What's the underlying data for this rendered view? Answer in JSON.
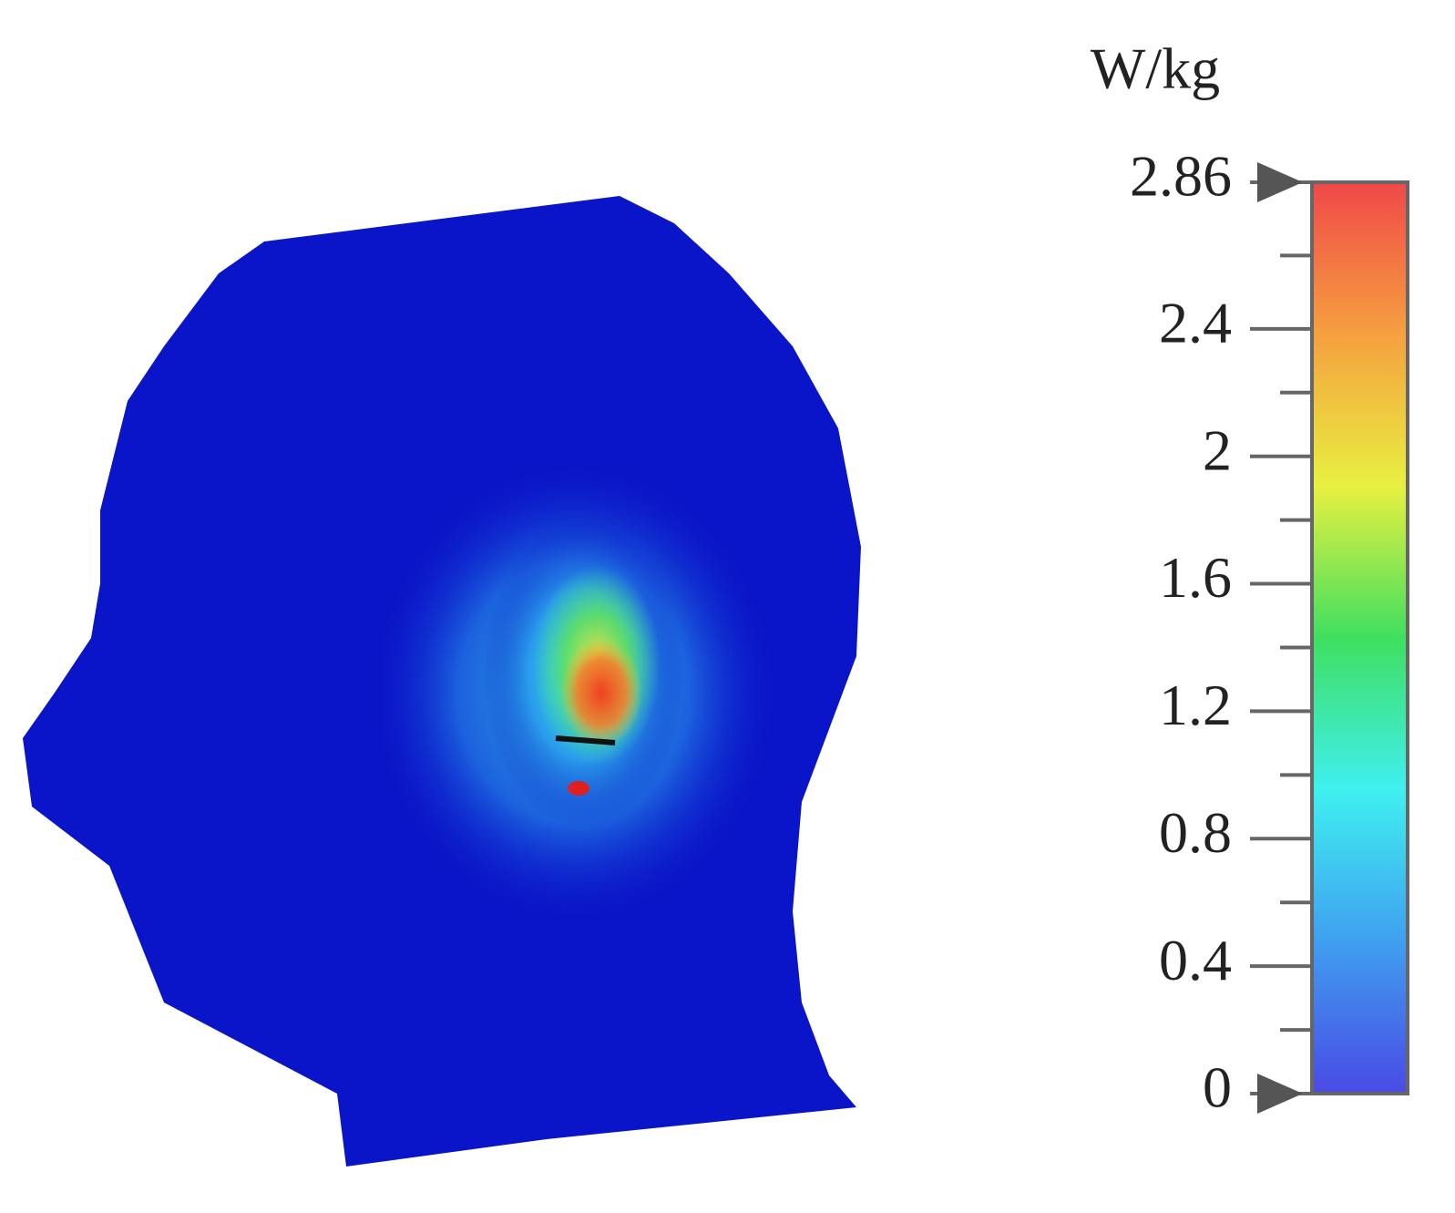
{
  "chart_data": {
    "type": "heatmap",
    "colorbar_label": "W/kg",
    "clim": [
      0,
      2.86
    ],
    "cticks": [
      0,
      0.4,
      0.8,
      1.2,
      1.6,
      2,
      2.4,
      2.86
    ],
    "colormap": [
      "#4a4ae6",
      "#3f9fef",
      "#3ff0f0",
      "#3fdf5f",
      "#e8f040",
      "#f5a040",
      "#f04848"
    ]
  }
}
